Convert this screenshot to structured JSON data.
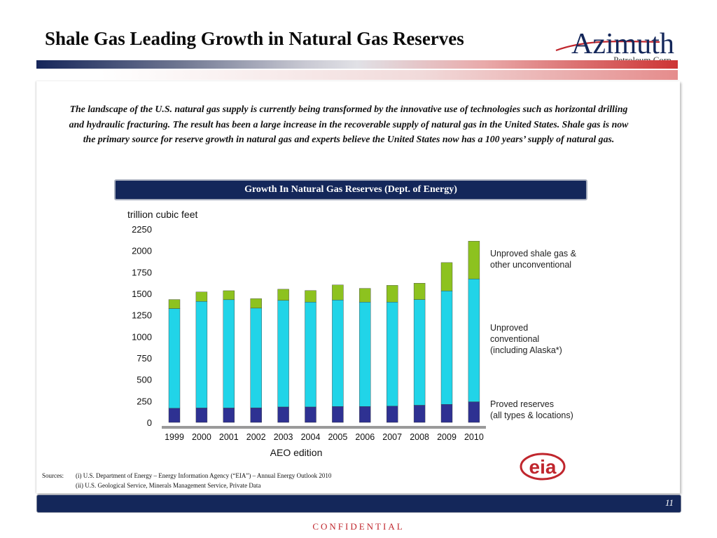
{
  "slide": {
    "title": "Shale Gas Leading Growth in Natural Gas Reserves",
    "logo": {
      "name": "Azimuth",
      "sub": "Petroleum Corp."
    },
    "intro": "The landscape of the U.S. natural gas supply is currently being transformed by the innovative use of technologies such as horizontal drilling and hydraulic fracturing.  The result has been a large increase in the recoverable supply of natural gas in the United States.  Shale gas is now the primary source for reserve growth in natural gas and experts believe the United States now has a 100 years’ supply of natural gas.",
    "chart_banner": "Growth In Natural Gas Reserves (Dept. of Energy)",
    "eia_logo": "eia",
    "sources": {
      "label": "Sources:",
      "line1": "(i)  U.S. Department of Energy – Energy Information Agency (“EIA”) – Annual Energy Outlook 2010",
      "line2": "(ii) U.S. Geological Service, Minerals Management  Service, Private Data"
    },
    "page_number": "11",
    "confidential": "CONFIDENTIAL"
  },
  "colors": {
    "proved": "#2e3192",
    "unproved_conventional": "#21d4e8",
    "shale": "#8dc21f",
    "navy": "#14275a",
    "accent_red": "#c0262d"
  },
  "chart_data": {
    "type": "bar",
    "stacked": true,
    "title": "",
    "ylabel": "trillion cubic feet",
    "xlabel": "AEO edition",
    "ylim": [
      0,
      2250
    ],
    "yticks": [
      0,
      250,
      500,
      750,
      1000,
      1250,
      1500,
      1750,
      2000,
      2250
    ],
    "grid": false,
    "legend_placement": "right",
    "categories": [
      "1999",
      "2000",
      "2001",
      "2002",
      "2003",
      "2004",
      "2005",
      "2006",
      "2007",
      "2008",
      "2009",
      "2010"
    ],
    "series": [
      {
        "name": "Proved reserves (all types & locations)",
        "legend_lines": [
          "Proved reserves",
          "(all types & locations)"
        ],
        "color": "#2e3192",
        "values": [
          165,
          168,
          168,
          170,
          180,
          180,
          185,
          185,
          190,
          200,
          210,
          240
        ]
      },
      {
        "name": "Unproved conventional (including Alaska*)",
        "legend_lines": [
          "Unproved",
          "conventional",
          "(including Alaska*)"
        ],
        "color": "#21d4e8",
        "values": [
          1160,
          1240,
          1260,
          1160,
          1240,
          1220,
          1240,
          1215,
          1210,
          1230,
          1320,
          1430
        ]
      },
      {
        "name": "Unproved shale gas & other unconventional",
        "legend_lines": [
          "Unproved shale gas &",
          "other unconventional"
        ],
        "color": "#8dc21f",
        "values": [
          105,
          110,
          105,
          110,
          130,
          135,
          175,
          160,
          195,
          190,
          330,
          440
        ]
      }
    ]
  }
}
